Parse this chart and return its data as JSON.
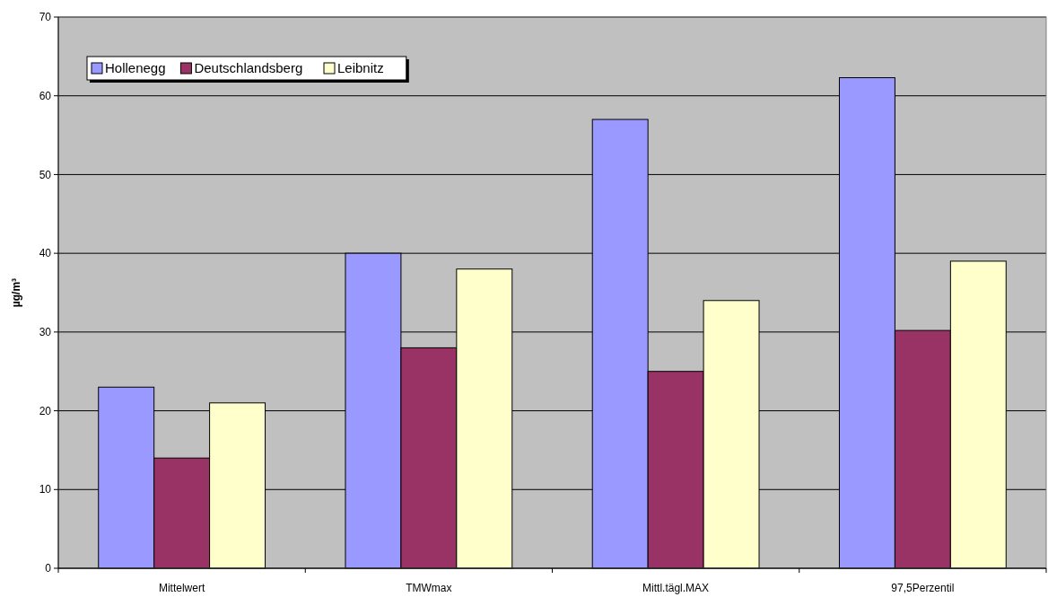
{
  "chart_data": {
    "type": "bar",
    "ylabel": "µg/m³",
    "categories": [
      "Mittelwert",
      "TMWmax",
      "Mittl.tägl.MAX",
      "97,5Perzentil"
    ],
    "series": [
      {
        "name": "Hollenegg",
        "color": "#9999ff",
        "values": [
          23,
          40,
          57,
          62.3
        ]
      },
      {
        "name": "Deutschlandsberg",
        "color": "#993366",
        "values": [
          14,
          28,
          25,
          30.2
        ]
      },
      {
        "name": "Leibnitz",
        "color": "#ffffcc",
        "values": [
          21,
          38,
          34,
          39
        ]
      }
    ],
    "ylim": [
      0,
      70
    ],
    "yticks": [
      0,
      10,
      20,
      30,
      40,
      50,
      60,
      70
    ],
    "grid": "y",
    "legend": "top left"
  }
}
